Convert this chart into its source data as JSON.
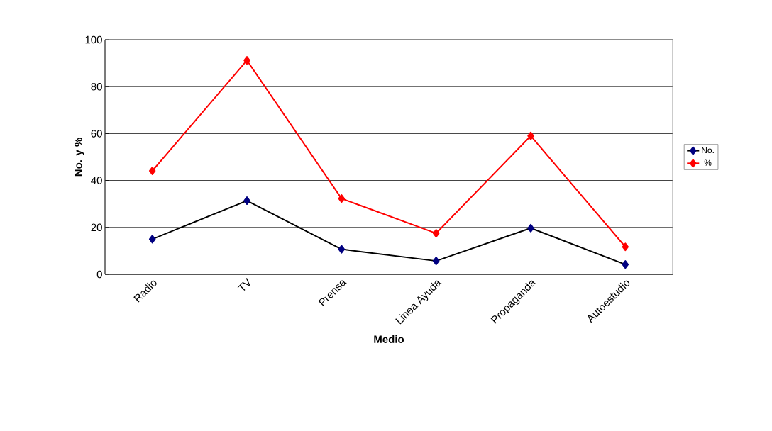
{
  "chart_data": {
    "type": "line",
    "xlabel": "Medio",
    "ylabel": "No. y %",
    "categories": [
      "Radio",
      "TV",
      "Prensa",
      "Linea Ayuda",
      "Propaganda",
      "Autoestudio"
    ],
    "series": [
      {
        "name": "No.",
        "color": "#000080",
        "values": [
          15,
          31.4,
          10.7,
          5.7,
          19.7,
          4.2
        ]
      },
      {
        "name": "%",
        "color": "#ff0000",
        "values": [
          44.1,
          91.2,
          32.3,
          17.5,
          59,
          11.7
        ]
      }
    ],
    "ylim": [
      0,
      100
    ],
    "yticks": [
      0,
      20,
      40,
      60,
      80,
      100
    ],
    "grid": "y",
    "legend": "right",
    "marker": "diamond",
    "line_style": "solid"
  }
}
